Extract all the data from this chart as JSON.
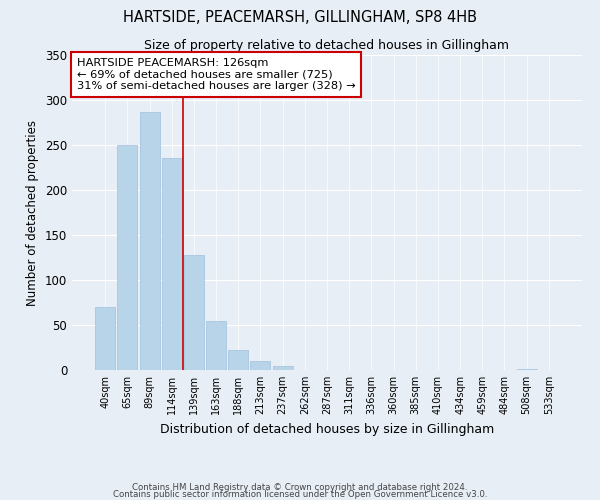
{
  "title": "HARTSIDE, PEACEMARSH, GILLINGHAM, SP8 4HB",
  "subtitle": "Size of property relative to detached houses in Gillingham",
  "xlabel": "Distribution of detached houses by size in Gillingham",
  "ylabel": "Number of detached properties",
  "bar_labels": [
    "40sqm",
    "65sqm",
    "89sqm",
    "114sqm",
    "139sqm",
    "163sqm",
    "188sqm",
    "213sqm",
    "237sqm",
    "262sqm",
    "287sqm",
    "311sqm",
    "336sqm",
    "360sqm",
    "385sqm",
    "410sqm",
    "434sqm",
    "459sqm",
    "484sqm",
    "508sqm",
    "533sqm"
  ],
  "bar_values": [
    70,
    250,
    287,
    236,
    128,
    54,
    22,
    10,
    4,
    0,
    0,
    0,
    0,
    0,
    0,
    0,
    0,
    0,
    0,
    1,
    0
  ],
  "bar_color": "#b8d4e8",
  "bar_edge_color": "#a0c0de",
  "vline_x": 3.5,
  "vline_color": "#cc0000",
  "annotation_title": "HARTSIDE PEACEMARSH: 126sqm",
  "annotation_line1": "← 69% of detached houses are smaller (725)",
  "annotation_line2": "31% of semi-detached houses are larger (328) →",
  "annotation_box_color": "#ffffff",
  "annotation_box_edge": "#cc0000",
  "ylim": [
    0,
    350
  ],
  "yticks": [
    0,
    50,
    100,
    150,
    200,
    250,
    300,
    350
  ],
  "footer1": "Contains HM Land Registry data © Crown copyright and database right 2024.",
  "footer2": "Contains public sector information licensed under the Open Government Licence v3.0.",
  "bg_color": "#e8eef5"
}
